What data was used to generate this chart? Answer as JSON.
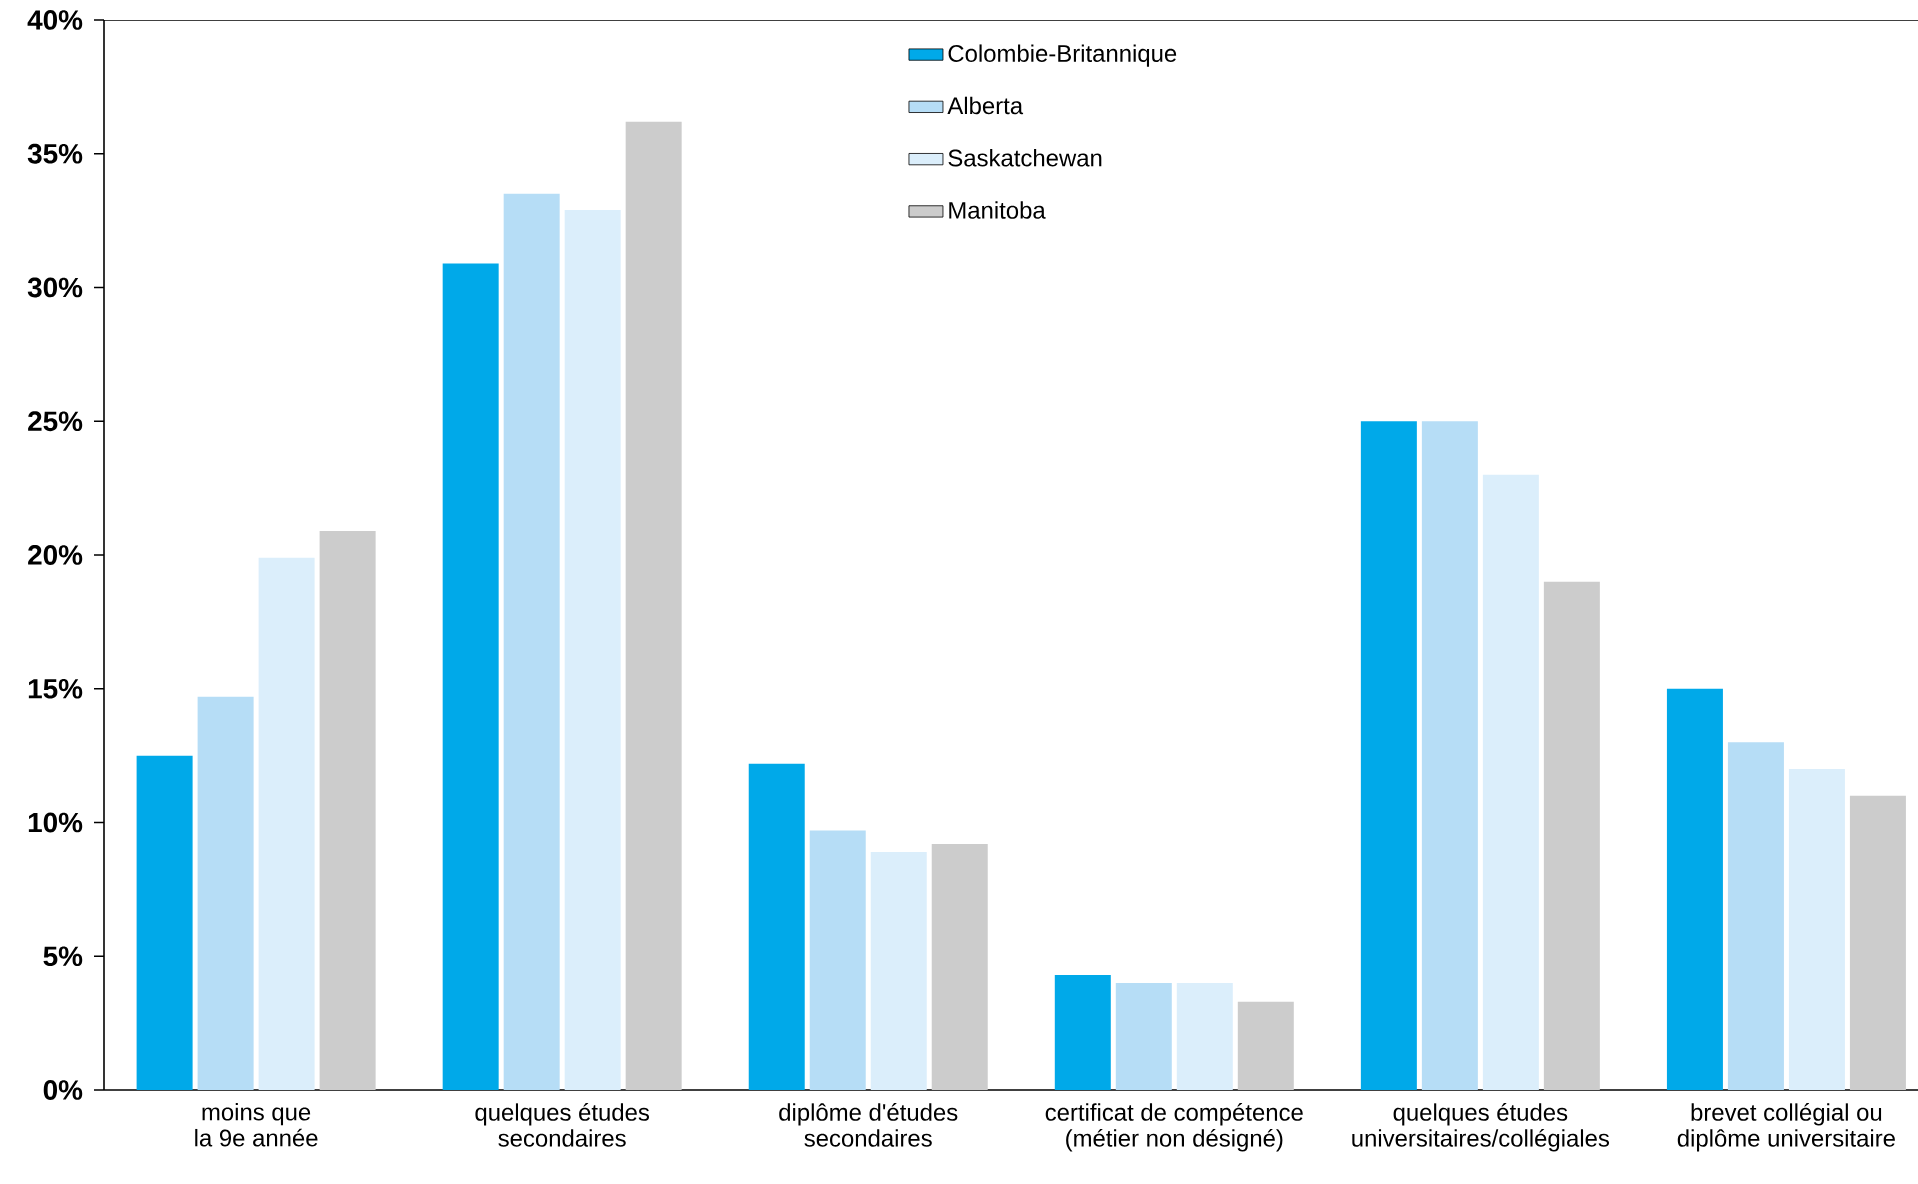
{
  "chart_data": {
    "type": "bar",
    "categories": [
      "moins que\nla 9e année",
      "quelques études\nsecondaires",
      "diplôme d'études\nsecondaires",
      "certificat de compétence\n(métier non désigné)",
      "quelques études\nuniversitaires/collégiales",
      "brevet collégial ou\ndiplôme universitaire"
    ],
    "series": [
      {
        "name": "Colombie-Britannique",
        "color": "#00a9e9",
        "values": [
          12.5,
          30.9,
          12.2,
          4.3,
          25.0,
          15.0
        ]
      },
      {
        "name": "Alberta",
        "color": "#b6ddf6",
        "values": [
          14.7,
          33.5,
          9.7,
          4.0,
          25.0,
          13.0
        ]
      },
      {
        "name": "Saskatchewan",
        "color": "#dbeefb",
        "values": [
          19.9,
          32.9,
          8.9,
          4.0,
          23.0,
          12.0
        ]
      },
      {
        "name": "Manitoba",
        "color": "#cccccc",
        "values": [
          20.9,
          36.2,
          9.2,
          3.3,
          19.0,
          11.0
        ]
      }
    ],
    "ylim": [
      0,
      40
    ],
    "yticks": [
      {
        "value": 0,
        "label": "0%"
      },
      {
        "value": 5,
        "label": "5%"
      },
      {
        "value": 10,
        "label": "10%"
      },
      {
        "value": 15,
        "label": "15%"
      },
      {
        "value": 20,
        "label": "20%"
      },
      {
        "value": 25,
        "label": "25%"
      },
      {
        "value": 30,
        "label": "30%"
      },
      {
        "value": 35,
        "label": "35%"
      },
      {
        "value": 40,
        "label": "40%"
      }
    ],
    "legend": "top",
    "grid": false
  }
}
